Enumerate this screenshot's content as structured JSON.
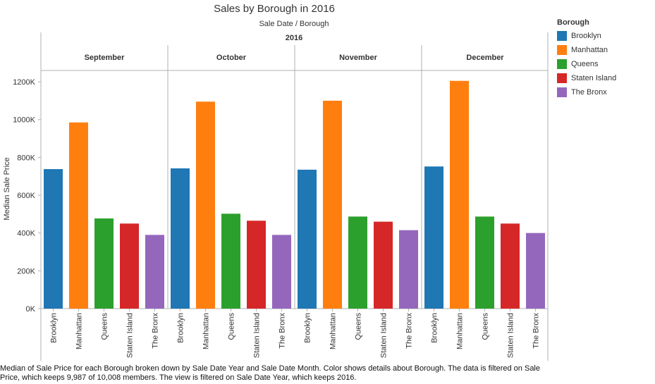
{
  "chart_data": {
    "type": "bar",
    "title": "Sales by Borough in 2016",
    "column_header": "Sale Date  /  Borough",
    "year": "2016",
    "months": [
      "September",
      "October",
      "November",
      "December"
    ],
    "categories": [
      "Brooklyn",
      "Manhattan",
      "Queens",
      "Staten Island",
      "The Bronx"
    ],
    "series": [
      {
        "name": "September",
        "values": [
          738000,
          985000,
          477000,
          450000,
          390000
        ]
      },
      {
        "name": "October",
        "values": [
          742000,
          1095000,
          502000,
          465000,
          390000
        ]
      },
      {
        "name": "November",
        "values": [
          735000,
          1100000,
          487000,
          460000,
          415000
        ]
      },
      {
        "name": "December",
        "values": [
          752000,
          1205000,
          487000,
          450000,
          400000
        ]
      }
    ],
    "ylabel": "Median Sale Price",
    "ylim": [
      0,
      1260000
    ],
    "yticks": [
      {
        "value": 0,
        "label": "0K"
      },
      {
        "value": 200000,
        "label": "200K"
      },
      {
        "value": 400000,
        "label": "400K"
      },
      {
        "value": 600000,
        "label": "600K"
      },
      {
        "value": 800000,
        "label": "800K"
      },
      {
        "value": 1000000,
        "label": "1000K"
      },
      {
        "value": 1200000,
        "label": "1200K"
      }
    ],
    "colors": {
      "Brooklyn": "#1f77b4",
      "Manhattan": "#ff7f0e",
      "Queens": "#2ca02c",
      "Staten Island": "#d62728",
      "The Bronx": "#9467bd"
    },
    "legend": {
      "title": "Borough",
      "placement": "right",
      "items": [
        "Brooklyn",
        "Manhattan",
        "Queens",
        "Staten Island",
        "The Bronx"
      ]
    },
    "grid": false
  },
  "caption": "Median of Sale Price for each Borough broken down by Sale Date Year and Sale Date Month.  Color shows details about Borough. The data is filtered on Sale Price, which keeps 9,987 of 10,008 members. The view is filtered on Sale Date Year, which keeps 2016."
}
